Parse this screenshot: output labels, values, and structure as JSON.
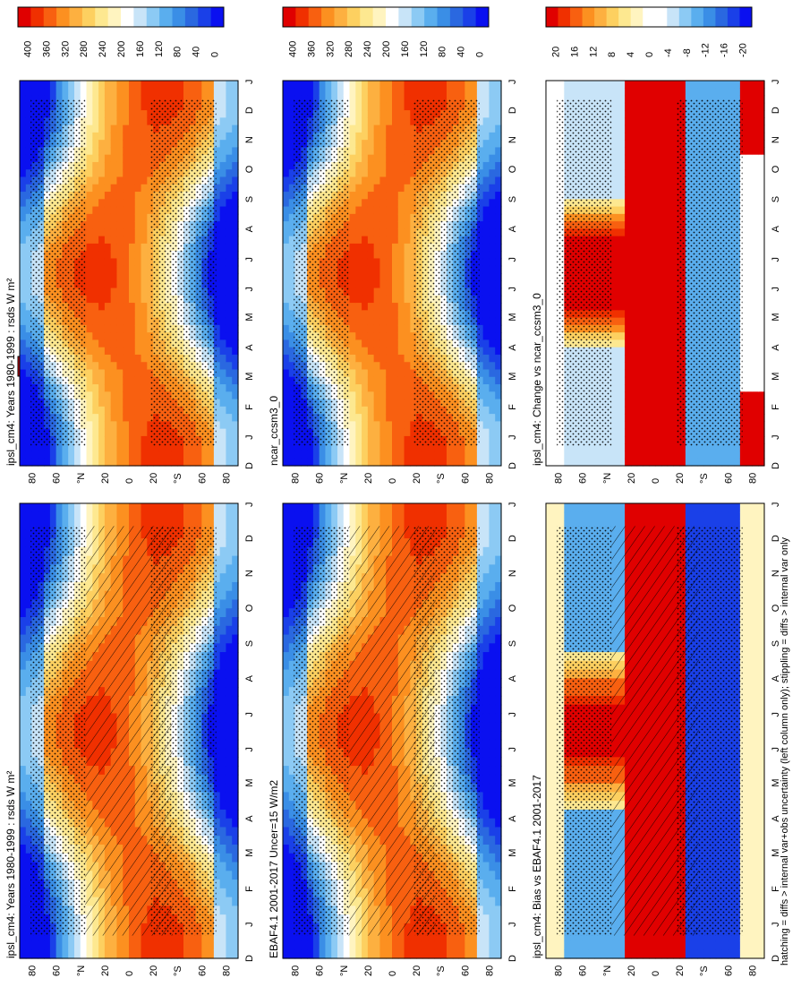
{
  "figure": {
    "footnote": "hatching = diffs > internal var+obs uncertainty (left column only); stippling = diffs > internal var only"
  },
  "chart_data": [
    {
      "type": "heatmap",
      "title": "ipsl_cm4: Years 1980-1999 : rsds W m²",
      "x_ticks": [
        "D",
        "J",
        "F",
        "M",
        "A",
        "M",
        "J",
        "J",
        "A",
        "S",
        "O",
        "N",
        "D",
        "J"
      ],
      "y_ticks": [
        "80",
        "60",
        "°N",
        "20",
        "0",
        "20",
        "°S",
        "60",
        "80"
      ],
      "colorbar": [
        "400",
        "360",
        "320",
        "280",
        "240",
        "200",
        "160",
        "120",
        "80",
        "40",
        "0"
      ],
      "hatching": true,
      "stippling": true
    },
    {
      "type": "heatmap",
      "title": "ipsl_cm4: Years 1980-1999 : rsds W m²",
      "x_ticks": [
        "D",
        "J",
        "F",
        "M",
        "A",
        "M",
        "J",
        "J",
        "A",
        "S",
        "O",
        "N",
        "D",
        "J"
      ],
      "y_ticks": [
        "80",
        "60",
        "°N",
        "20",
        "0",
        "20",
        "°S",
        "60",
        "80"
      ],
      "colorbar": [
        "400",
        "360",
        "320",
        "280",
        "240",
        "200",
        "160",
        "120",
        "80",
        "40",
        "0"
      ],
      "hatching": false,
      "stippling": true
    },
    {
      "type": "heatmap",
      "title": "EBAF4.1 2001-2017 Uncer=15 W/m2",
      "x_ticks": [
        "D",
        "J",
        "F",
        "M",
        "A",
        "M",
        "J",
        "J",
        "A",
        "S",
        "O",
        "N",
        "D",
        "J"
      ],
      "y_ticks": [
        "80",
        "60",
        "°N",
        "20",
        "0",
        "20",
        "°S",
        "60",
        "80"
      ],
      "colorbar": [
        "400",
        "360",
        "320",
        "280",
        "240",
        "200",
        "160",
        "120",
        "80",
        "40",
        "0"
      ],
      "hatching": true,
      "stippling": true
    },
    {
      "type": "heatmap",
      "title": "ncar_ccsm3_0",
      "x_ticks": [
        "D",
        "J",
        "F",
        "M",
        "A",
        "M",
        "J",
        "J",
        "A",
        "S",
        "O",
        "N",
        "D",
        "J"
      ],
      "y_ticks": [
        "80",
        "60",
        "°N",
        "20",
        "0",
        "20",
        "°S",
        "60",
        "80"
      ],
      "colorbar": [
        "400",
        "360",
        "320",
        "280",
        "240",
        "200",
        "160",
        "120",
        "80",
        "40",
        "0"
      ],
      "hatching": false,
      "stippling": true
    },
    {
      "type": "heatmap",
      "title": "ipsl_cm4: Bias vs EBAF4.1 2001-2017",
      "x_ticks": [
        "D",
        "J",
        "F",
        "M",
        "A",
        "M",
        "J",
        "J",
        "A",
        "S",
        "O",
        "N",
        "D",
        "J"
      ],
      "y_ticks": [
        "80",
        "60",
        "°N",
        "20",
        "0",
        "20",
        "°S",
        "60",
        "80"
      ],
      "colorbar": [
        "20",
        "16",
        "12",
        "8",
        "4",
        "0",
        "-4",
        "-8",
        "-12",
        "-16",
        "-20"
      ],
      "hatching": true,
      "stippling": true
    },
    {
      "type": "heatmap",
      "title": "ipsl_cm4: Change vs ncar_ccsm3_0",
      "x_ticks": [
        "D",
        "J",
        "F",
        "M",
        "A",
        "M",
        "J",
        "J",
        "A",
        "S",
        "O",
        "N",
        "D",
        "J"
      ],
      "y_ticks": [
        "80",
        "60",
        "°N",
        "20",
        "0",
        "20",
        "°S",
        "60",
        "80"
      ],
      "colorbar": [
        "20",
        "16",
        "12",
        "8",
        "4",
        "0",
        "-4",
        "-8",
        "-12",
        "-16",
        "-20"
      ],
      "hatching": false,
      "stippling": true
    }
  ],
  "colors": {
    "abs": [
      "#e00000",
      "#f03000",
      "#f86010",
      "#fc9020",
      "#fdb040",
      "#fdd060",
      "#fde890",
      "#fff4c0",
      "#ffffff",
      "#c8e4f8",
      "#8ccaf4",
      "#5aaeee",
      "#3a8ee6",
      "#2a68e0",
      "#1a40e8",
      "#0a10f0"
    ],
    "diff": [
      "#e00000",
      "#f03000",
      "#f86010",
      "#fc9020",
      "#fdb040",
      "#fdd060",
      "#fde890",
      "#fff4c0",
      "#ffffff",
      "#ffffff",
      "#c8e4f8",
      "#8ccaf4",
      "#5aaeee",
      "#3a8ee6",
      "#2a68e0",
      "#1a40e8",
      "#0a10f0"
    ]
  }
}
